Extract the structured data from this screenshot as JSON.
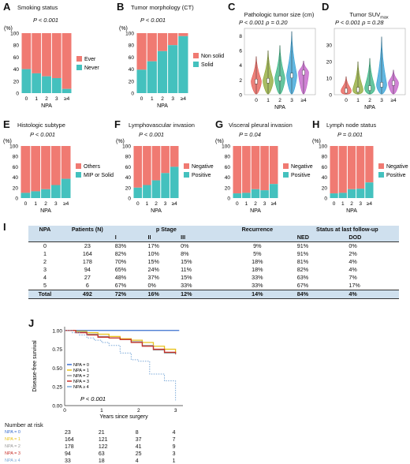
{
  "colors": {
    "ever_others_nonsolid_negative": "#f07a72",
    "never_solid_positive": "#44c1be"
  },
  "panels": {
    "A": {
      "letter": "A",
      "title": "Smoking status",
      "pvalue": "P < 0.001"
    },
    "B": {
      "letter": "B",
      "title": "Tumor morphology (CT)",
      "pvalue": "P < 0.001"
    },
    "C": {
      "letter": "C",
      "title": "Pathologic tumor size (cm)",
      "pvalue": "P < 0.001 ρ = 0.20"
    },
    "D": {
      "letter": "D",
      "title_prefix": "Tumor SUV",
      "title_sub": "max",
      "pvalue": "P < 0.001 ρ = 0.28"
    },
    "E": {
      "letter": "E",
      "title": "Histologic subtype",
      "pvalue": "P < 0.001"
    },
    "F": {
      "letter": "F",
      "title": "Lymphovascular invasion",
      "pvalue": "P < 0.001"
    },
    "G": {
      "letter": "G",
      "title": "Visceral pleural invasion",
      "pvalue": "P = 0.04"
    },
    "H": {
      "letter": "H",
      "title": "Lymph node status",
      "pvalue": "P = 0.001"
    },
    "I": {
      "letter": "I"
    },
    "J": {
      "letter": "J",
      "pvalue": "P < 0.001"
    }
  },
  "chart_data": [
    {
      "id": "A",
      "type": "bar",
      "stacked": true,
      "ylabel": "(%)",
      "xlabel": "NPA",
      "ylim": [
        0,
        100
      ],
      "categories": [
        "0",
        "1",
        "2",
        "3",
        "≥4"
      ],
      "series": [
        {
          "name": "Never",
          "values": [
            40,
            33,
            28,
            25,
            7
          ]
        },
        {
          "name": "Ever",
          "values": [
            60,
            67,
            72,
            75,
            93
          ]
        }
      ],
      "legend": "right"
    },
    {
      "id": "B",
      "type": "bar",
      "stacked": true,
      "ylabel": "(%)",
      "xlabel": "NPA",
      "ylim": [
        0,
        100
      ],
      "categories": [
        "0",
        "1",
        "2",
        "3",
        "≥4"
      ],
      "series": [
        {
          "name": "Solid",
          "values": [
            39,
            53,
            70,
            80,
            95
          ]
        },
        {
          "name": "Non solid",
          "values": [
            61,
            47,
            30,
            20,
            5
          ]
        }
      ],
      "legend": "right"
    },
    {
      "id": "C",
      "type": "violin",
      "xlabel": "NPA",
      "ylim": [
        0,
        9
      ],
      "yticks": [
        0,
        2,
        4,
        6,
        8
      ],
      "categories": [
        "0",
        "1",
        "2",
        "3",
        "≥4"
      ],
      "medians": [
        1.8,
        1.9,
        2.2,
        2.6,
        3.0
      ],
      "max": [
        5.2,
        6.0,
        6.7,
        8.6,
        4.6
      ],
      "colors": [
        "#e5564e",
        "#8ba52f",
        "#31b27f",
        "#2f9fd6",
        "#c05ac6"
      ]
    },
    {
      "id": "D",
      "type": "violin",
      "xlabel": "NPA",
      "ylim": [
        0,
        40
      ],
      "yticks": [
        0,
        10,
        20,
        30
      ],
      "categories": [
        "0",
        "1",
        "2",
        "3",
        "≥4"
      ],
      "medians": [
        2.4,
        3.0,
        4.0,
        6.0,
        7.0
      ],
      "max": [
        11,
        20,
        22,
        35,
        15
      ],
      "colors": [
        "#e5564e",
        "#8ba52f",
        "#31b27f",
        "#2f9fd6",
        "#c05ac6"
      ]
    },
    {
      "id": "E",
      "type": "bar",
      "stacked": true,
      "ylabel": "(%)",
      "xlabel": "NPA",
      "ylim": [
        0,
        100
      ],
      "categories": [
        "0",
        "1",
        "2",
        "3",
        "≥4"
      ],
      "series": [
        {
          "name": "MIP or Solid",
          "values": [
            10,
            13,
            17,
            25,
            37
          ]
        },
        {
          "name": "Others",
          "values": [
            90,
            87,
            83,
            75,
            63
          ]
        }
      ],
      "legend": "right"
    },
    {
      "id": "F",
      "type": "bar",
      "stacked": true,
      "ylabel": "(%)",
      "xlabel": "NPA",
      "ylim": [
        0,
        100
      ],
      "categories": [
        "0",
        "1",
        "2",
        "3",
        "≥4"
      ],
      "series": [
        {
          "name": "Positive",
          "values": [
            20,
            25,
            34,
            48,
            60
          ]
        },
        {
          "name": "Negative",
          "values": [
            80,
            75,
            66,
            52,
            40
          ]
        }
      ],
      "legend": "right"
    },
    {
      "id": "G",
      "type": "bar",
      "stacked": true,
      "ylabel": "(%)",
      "xlabel": "NPA",
      "ylim": [
        0,
        100
      ],
      "categories": [
        "0",
        "1",
        "2",
        "3",
        "≥4"
      ],
      "series": [
        {
          "name": "Positive",
          "values": [
            9,
            10,
            17,
            15,
            27
          ]
        },
        {
          "name": "Negative",
          "values": [
            91,
            90,
            83,
            85,
            73
          ]
        }
      ],
      "legend": "right"
    },
    {
      "id": "H",
      "type": "bar",
      "stacked": true,
      "ylabel": "(%)",
      "xlabel": "NPA",
      "ylim": [
        0,
        100
      ],
      "categories": [
        "0",
        "1",
        "2",
        "3",
        "≥4"
      ],
      "series": [
        {
          "name": "Positive",
          "values": [
            9,
            10,
            17,
            18,
            30
          ]
        },
        {
          "name": "Negative",
          "values": [
            91,
            90,
            83,
            82,
            70
          ]
        }
      ],
      "legend": "right"
    },
    {
      "id": "J",
      "type": "line",
      "ylabel": "Disease-free survival",
      "xlabel": "Years since surgery",
      "xlim": [
        0,
        3.2
      ],
      "ylim": [
        0,
        1.05
      ],
      "xticks": [
        0,
        1,
        2,
        3
      ],
      "yticks": [
        0.0,
        0.25,
        0.5,
        0.75,
        1.0
      ],
      "series": [
        {
          "name": "NPA = 0",
          "color": "#3a6fcf",
          "x": [
            0,
            3.1
          ],
          "y": [
            1.0,
            1.0
          ]
        },
        {
          "name": "NPA = 1",
          "color": "#e8c21a",
          "x": [
            0,
            0.3,
            0.6,
            0.9,
            1.2,
            1.5,
            1.8,
            2.1,
            2.4,
            2.7,
            3.0
          ],
          "y": [
            1.0,
            0.99,
            0.97,
            0.95,
            0.92,
            0.89,
            0.87,
            0.84,
            0.79,
            0.75,
            0.7
          ]
        },
        {
          "name": "NPA = 2",
          "color": "#999999",
          "x": [
            0,
            0.3,
            0.6,
            0.9,
            1.2,
            1.5,
            1.8,
            2.1,
            2.4,
            2.7,
            3.0
          ],
          "y": [
            1.0,
            0.98,
            0.95,
            0.92,
            0.9,
            0.88,
            0.85,
            0.8,
            0.74,
            0.7,
            0.68
          ]
        },
        {
          "name": "NPA = 3",
          "color": "#c8312a",
          "x": [
            0,
            0.3,
            0.6,
            0.9,
            1.2,
            1.5,
            1.8,
            2.1,
            2.4,
            2.7,
            3.0
          ],
          "y": [
            1.0,
            0.97,
            0.94,
            0.91,
            0.9,
            0.88,
            0.84,
            0.79,
            0.75,
            0.71,
            0.69
          ]
        },
        {
          "name": "NPA ≥ 4",
          "color": "#7aa8d8",
          "x": [
            0,
            0.2,
            0.4,
            0.6,
            0.8,
            1.0,
            1.2,
            1.5,
            1.8,
            2.0,
            2.3,
            2.7,
            3.0
          ],
          "y": [
            1.0,
            0.97,
            0.94,
            0.9,
            0.87,
            0.84,
            0.8,
            0.7,
            0.61,
            0.59,
            0.42,
            0.33,
            0.07
          ]
        }
      ]
    }
  ],
  "table": {
    "header1": {
      "npa": "NPA",
      "patients": "Patients (N)",
      "pstage": "p Stage",
      "recurrence": "Recurrence",
      "status": "Status at last follow-up"
    },
    "header2": {
      "i": "I",
      "ii": "II",
      "iii": "III",
      "ned": "NED",
      "dod": "DOD"
    },
    "rows": [
      {
        "npa": "0",
        "patients": "23",
        "i": "83%",
        "ii": "17%",
        "iii": "0%",
        "rec": "9%",
        "ned": "91%",
        "dod": "0%"
      },
      {
        "npa": "1",
        "patients": "164",
        "i": "82%",
        "ii": "10%",
        "iii": "8%",
        "rec": "5%",
        "ned": "91%",
        "dod": "2%"
      },
      {
        "npa": "2",
        "patients": "178",
        "i": "70%",
        "ii": "15%",
        "iii": "15%",
        "rec": "18%",
        "ned": "81%",
        "dod": "4%"
      },
      {
        "npa": "3",
        "patients": "94",
        "i": "65%",
        "ii": "24%",
        "iii": "11%",
        "rec": "18%",
        "ned": "82%",
        "dod": "4%"
      },
      {
        "npa": "4",
        "patients": "27",
        "i": "48%",
        "ii": "37%",
        "iii": "15%",
        "rec": "33%",
        "ned": "63%",
        "dod": "7%"
      },
      {
        "npa": "5",
        "patients": "6",
        "i": "67%",
        "ii": "0%",
        "iii": "33%",
        "rec": "33%",
        "ned": "67%",
        "dod": "17%"
      }
    ],
    "total": {
      "npa": "Total",
      "patients": "492",
      "i": "72%",
      "ii": "16%",
      "iii": "12%",
      "rec": "14%",
      "ned": "84%",
      "dod": "4%"
    }
  },
  "risk_table": {
    "title": "Number at risk",
    "rows": [
      {
        "label": "NPA = 0",
        "color": "#3a6fcf",
        "values": [
          "23",
          "21",
          "8",
          "4"
        ]
      },
      {
        "label": "NPA = 1",
        "color": "#e8c21a",
        "values": [
          "164",
          "121",
          "37",
          "7"
        ]
      },
      {
        "label": "NPA = 2",
        "color": "#999999",
        "values": [
          "178",
          "122",
          "41",
          "9"
        ]
      },
      {
        "label": "NPA = 3",
        "color": "#c8312a",
        "values": [
          "94",
          "63",
          "25",
          "3"
        ]
      },
      {
        "label": "NPA ≥ 4",
        "color": "#7aa8d8",
        "values": [
          "33",
          "18",
          "4",
          "1"
        ]
      }
    ]
  }
}
